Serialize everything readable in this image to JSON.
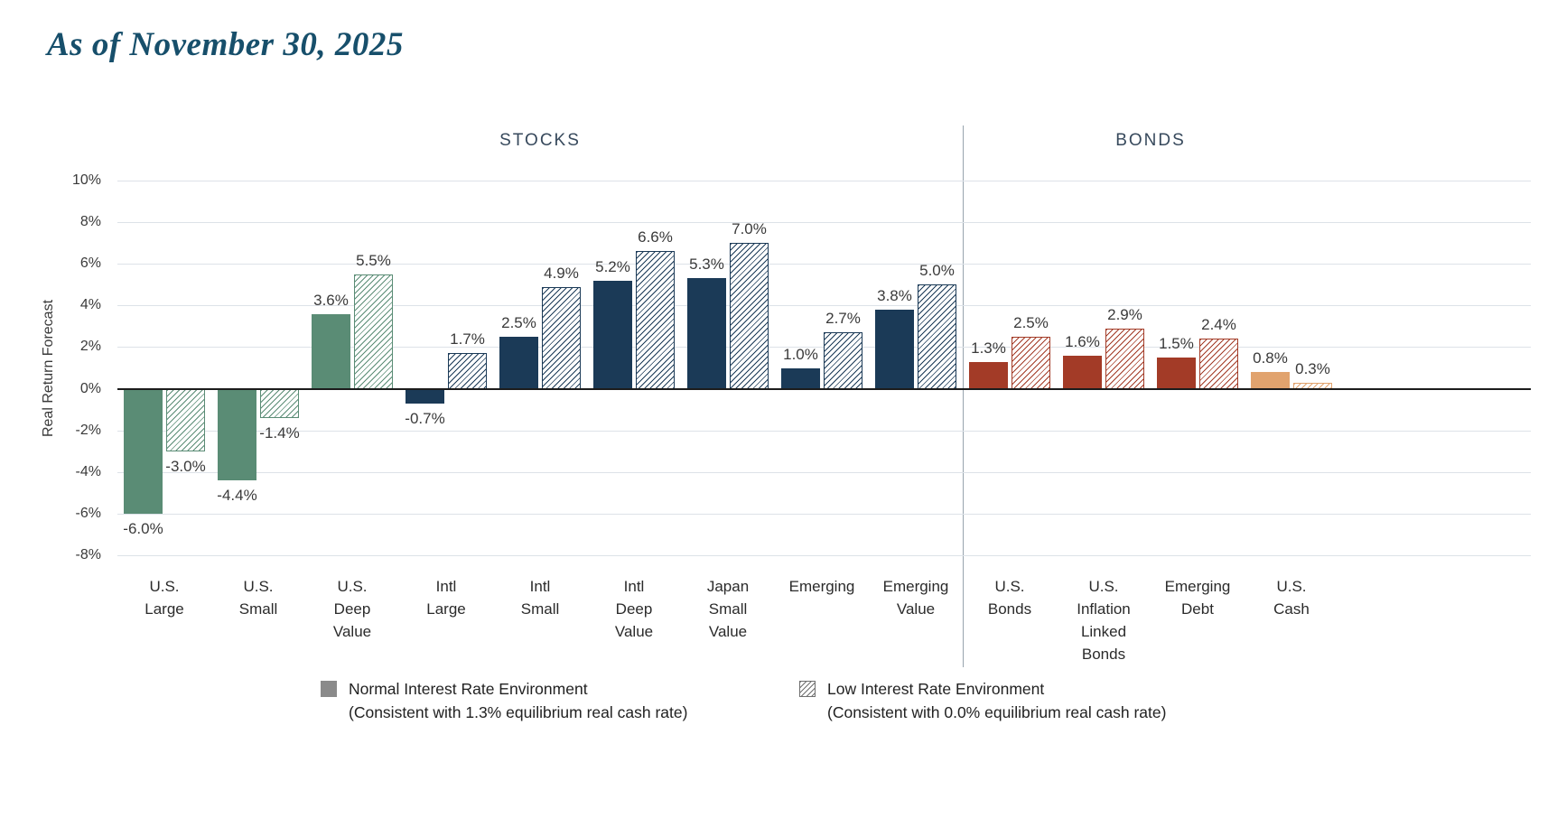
{
  "page": {
    "title": "As of November 30, 2025"
  },
  "chart_data": {
    "type": "bar",
    "title": "As of November 30, 2025",
    "ylabel": "Real Return Forecast",
    "ylim": [
      -8,
      10
    ],
    "ytick_step": 2,
    "yticks": [
      "10%",
      "8%",
      "6%",
      "4%",
      "2%",
      "0%",
      "-2%",
      "-4%",
      "-6%",
      "-8%"
    ],
    "grid": true,
    "legend_position": "bottom",
    "sections": [
      {
        "label": "STOCKS",
        "span": 9
      },
      {
        "label": "BONDS",
        "span": 4
      }
    ],
    "categories": [
      "U.S. Large",
      "U.S. Small",
      "U.S. Deep Value",
      "Intl Large",
      "Intl Small",
      "Intl Deep Value",
      "Japan Small Value",
      "Emerging",
      "Emerging Value",
      "U.S. Bonds",
      "U.S. Inflation Linked Bonds",
      "Emerging Debt",
      "U.S. Cash"
    ],
    "category_palette_keys": [
      "green",
      "green",
      "green",
      "navy",
      "navy",
      "navy",
      "navy",
      "navy",
      "navy",
      "red",
      "red",
      "red",
      "tan"
    ],
    "palette": {
      "green": "#5a8c75",
      "navy": "#1b3a57",
      "red": "#a33b27",
      "tan": "#e1a36e",
      "legend_gray": "#8a8a8a",
      "title_color": "#174f6b",
      "gridline": "#dde2e8",
      "zero_line": "#1c1c1c"
    },
    "series": [
      {
        "name": "Normal Interest Rate Environment",
        "subtitle": "(Consistent with 1.3% equilibrium real cash rate)",
        "pattern": "solid",
        "values": [
          -6.0,
          -4.4,
          3.6,
          -0.7,
          2.5,
          5.2,
          5.3,
          1.0,
          3.8,
          1.3,
          1.6,
          1.5,
          0.8
        ]
      },
      {
        "name": "Low Interest Rate Environment",
        "subtitle": "(Consistent with 0.0% equilibrium real cash rate)",
        "pattern": "hatched",
        "values": [
          -3.0,
          -1.4,
          5.5,
          1.7,
          4.9,
          6.6,
          7.0,
          2.7,
          5.0,
          2.5,
          2.9,
          2.4,
          0.3
        ]
      }
    ]
  }
}
